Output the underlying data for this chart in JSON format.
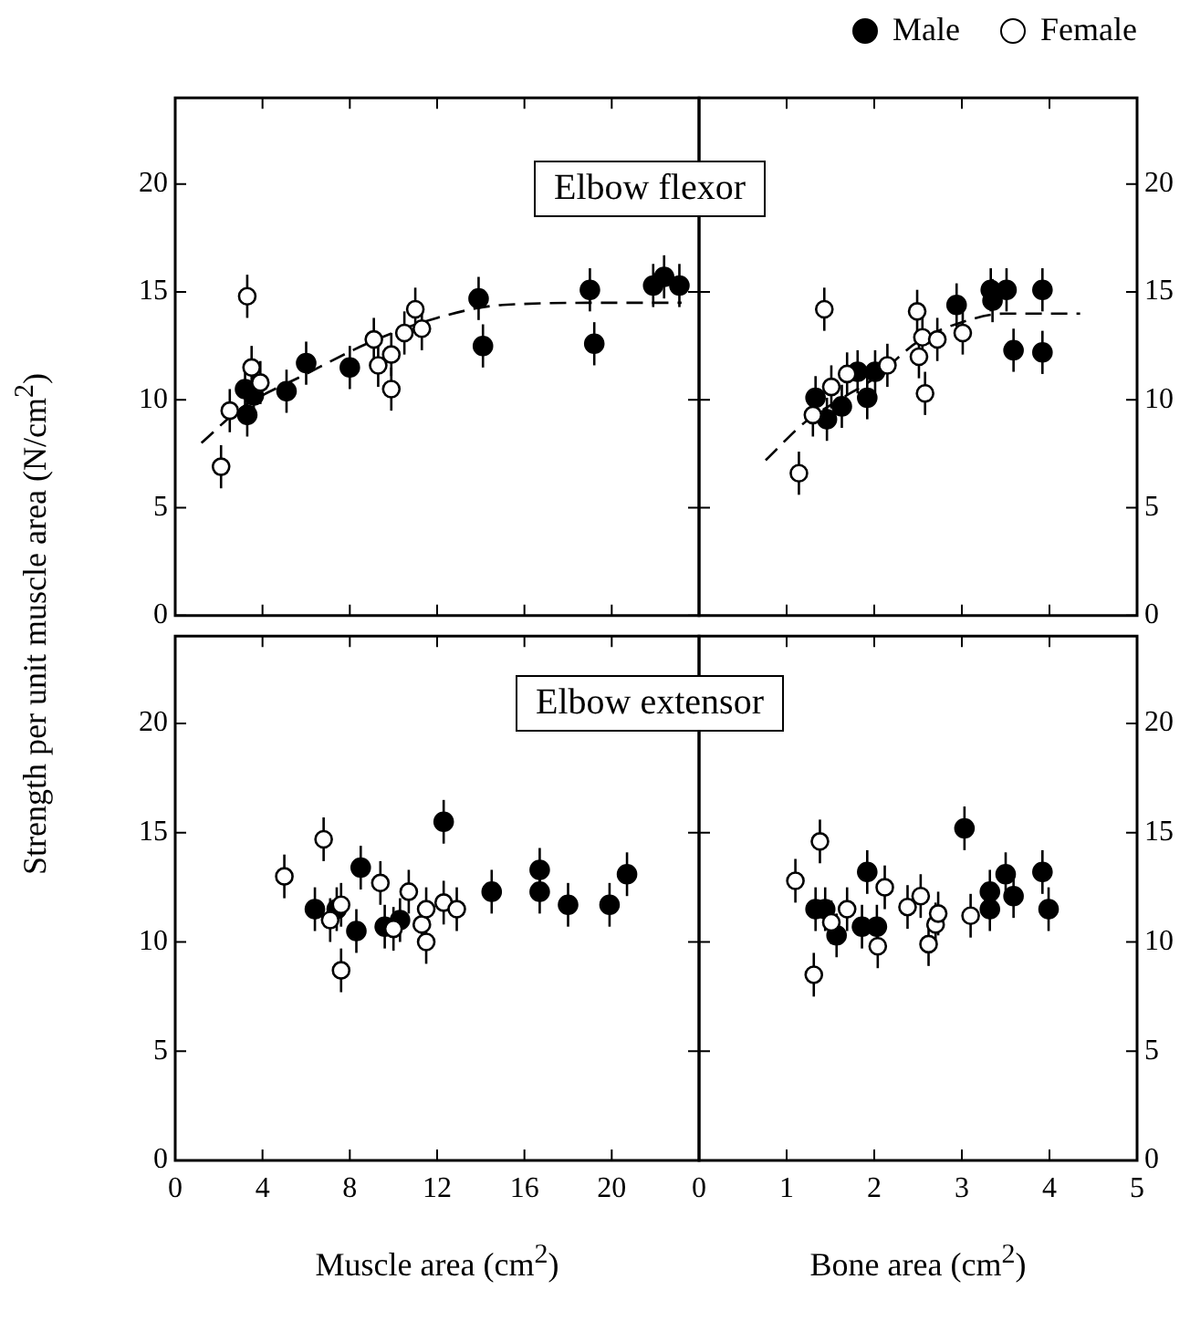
{
  "chart_data": [
    {
      "type": "scatter",
      "ylabel": "Strength per unit muscle area (N/cm$^{2}$)",
      "annotations": [
        "Elbow flexor"
      ],
      "xlim": [
        0,
        24
      ],
      "xticks": [
        0,
        4,
        8,
        12,
        16,
        20
      ],
      "ylim": [
        0,
        24
      ],
      "yticks": [
        0,
        5,
        10,
        15,
        20
      ],
      "tick_labels": "y",
      "marker": "circle",
      "series": [
        {
          "color": "#000000",
          "x": [
            3.2,
            3.6,
            3.3,
            5.1,
            6.0,
            8.0,
            13.9,
            14.1,
            19.0,
            19.2,
            21.9,
            22.4,
            23.1
          ],
          "values": [
            10.5,
            10.2,
            9.3,
            10.4,
            11.7,
            11.5,
            14.7,
            12.5,
            15.1,
            12.6,
            15.3,
            15.7,
            15.3
          ],
          "errors": [
            1,
            1,
            1,
            1,
            1,
            1,
            1,
            1,
            1,
            1,
            1,
            1,
            1
          ]
        },
        {
          "color": "#ffffff",
          "x": [
            2.1,
            2.5,
            3.3,
            3.5,
            3.9,
            9.1,
            9.3,
            9.9,
            9.9,
            10.5,
            11.0,
            11.3
          ],
          "values": [
            6.9,
            9.5,
            14.8,
            11.5,
            10.8,
            12.8,
            11.6,
            12.1,
            10.5,
            13.1,
            14.2,
            13.3
          ],
          "errors": [
            1,
            1,
            1,
            1,
            1,
            1,
            1,
            1,
            1,
            1,
            1,
            1
          ]
        },
        {
          "type": "line",
          "color": "#000000",
          "line_style": "dashed",
          "marker": "none",
          "x": [
            1.2,
            3,
            6,
            9,
            12,
            15,
            20,
            23.2
          ],
          "values": [
            8.0,
            9.6,
            11.2,
            12.7,
            13.8,
            14.4,
            14.5,
            14.5
          ]
        }
      ]
    },
    {
      "type": "scatter",
      "legend": "top right",
      "xlim": [
        0,
        5
      ],
      "xticks": [
        0,
        1,
        2,
        3,
        4,
        5
      ],
      "ylim": [
        0,
        24
      ],
      "yticks": [
        0,
        5,
        10,
        15,
        20
      ],
      "tick_labels": "y",
      "marker": "circle",
      "series": [
        {
          "name": "Male",
          "color": "#000000",
          "x": [
            1.33,
            1.46,
            1.63,
            1.81,
            1.92,
            2.01,
            2.94,
            3.33,
            3.35,
            3.51,
            3.59,
            3.92,
            3.92
          ],
          "values": [
            10.1,
            9.1,
            9.7,
            11.3,
            10.1,
            11.3,
            14.4,
            15.1,
            14.6,
            15.1,
            12.3,
            15.1,
            12.2
          ],
          "errors": [
            1,
            1,
            1,
            1,
            1,
            1,
            1,
            1,
            1,
            1,
            1,
            1,
            1
          ]
        },
        {
          "name": "Female",
          "color": "#ffffff",
          "x": [
            1.14,
            1.43,
            1.3,
            1.51,
            1.69,
            2.15,
            2.49,
            2.51,
            2.55,
            2.58,
            2.72,
            3.01
          ],
          "values": [
            6.6,
            14.2,
            9.3,
            10.6,
            11.2,
            11.6,
            14.1,
            12.0,
            12.9,
            10.3,
            12.8,
            13.1
          ],
          "errors": [
            1,
            1,
            1,
            1,
            1,
            1,
            1,
            1,
            1,
            1,
            1,
            1
          ]
        },
        {
          "type": "line",
          "color": "#000000",
          "line_style": "dashed",
          "marker": "none",
          "x": [
            0.76,
            1.22,
            1.6,
            2.0,
            2.5,
            3.0,
            3.5,
            4.35
          ],
          "values": [
            7.2,
            9.0,
            10.0,
            11.0,
            12.7,
            13.6,
            14.0,
            14.0
          ]
        }
      ]
    },
    {
      "type": "scatter",
      "xlabel": "Muscle area (cm$^{2}$)",
      "annotations": [
        "Elbow extensor"
      ],
      "xlim": [
        0,
        24
      ],
      "xticks": [
        0,
        4,
        8,
        12,
        16,
        20
      ],
      "ylim": [
        0,
        24
      ],
      "yticks": [
        0,
        5,
        10,
        15,
        20
      ],
      "marker": "circle",
      "series": [
        {
          "color": "#000000",
          "x": [
            6.4,
            7.4,
            8.5,
            8.3,
            9.6,
            10.3,
            12.3,
            14.5,
            16.7,
            16.7,
            18.0,
            19.9,
            20.7
          ],
          "values": [
            11.5,
            11.5,
            13.4,
            10.5,
            10.7,
            11.0,
            15.5,
            12.3,
            13.3,
            12.3,
            11.7,
            11.7,
            13.1
          ],
          "errors": [
            1,
            1,
            1,
            1,
            1,
            1,
            1,
            1,
            1,
            1,
            1,
            1,
            1
          ]
        },
        {
          "color": "#ffffff",
          "x": [
            5.0,
            6.8,
            7.1,
            7.6,
            7.6,
            9.4,
            10.0,
            10.7,
            11.3,
            11.5,
            11.5,
            12.3,
            12.9
          ],
          "values": [
            13.0,
            14.7,
            11.0,
            11.7,
            8.7,
            12.7,
            10.6,
            12.3,
            10.8,
            11.5,
            10.0,
            11.8,
            11.5
          ],
          "errors": [
            1,
            1,
            1,
            1,
            1,
            1,
            1,
            1,
            1,
            1,
            1,
            1,
            1
          ]
        }
      ]
    },
    {
      "type": "scatter",
      "xlabel": "Bone area (cm$^{2}$)",
      "xlim": [
        0,
        5
      ],
      "xticks": [
        0,
        1,
        2,
        3,
        4,
        5
      ],
      "ylim": [
        0,
        24
      ],
      "yticks": [
        0,
        5,
        10,
        15,
        20
      ],
      "marker": "circle",
      "series": [
        {
          "color": "#000000",
          "x": [
            1.33,
            1.44,
            1.57,
            1.92,
            1.86,
            2.03,
            3.03,
            3.32,
            3.32,
            3.5,
            3.59,
            3.92,
            3.99
          ],
          "values": [
            11.5,
            11.5,
            10.3,
            13.2,
            10.7,
            10.7,
            15.2,
            11.5,
            12.3,
            13.1,
            12.1,
            13.2,
            11.5
          ],
          "errors": [
            1,
            1,
            1,
            1,
            1,
            1,
            1,
            1,
            1,
            1,
            1,
            1,
            1
          ]
        },
        {
          "color": "#ffffff",
          "x": [
            1.1,
            1.38,
            1.31,
            1.51,
            1.69,
            2.12,
            2.04,
            2.38,
            2.53,
            2.62,
            2.7,
            2.73,
            3.1
          ],
          "values": [
            12.8,
            14.6,
            8.5,
            10.9,
            11.5,
            12.5,
            9.8,
            11.6,
            12.1,
            9.9,
            10.8,
            11.3,
            11.2
          ],
          "errors": [
            1,
            1,
            1,
            1,
            1,
            1,
            1,
            1,
            1,
            1,
            1,
            1,
            1
          ]
        }
      ]
    }
  ]
}
